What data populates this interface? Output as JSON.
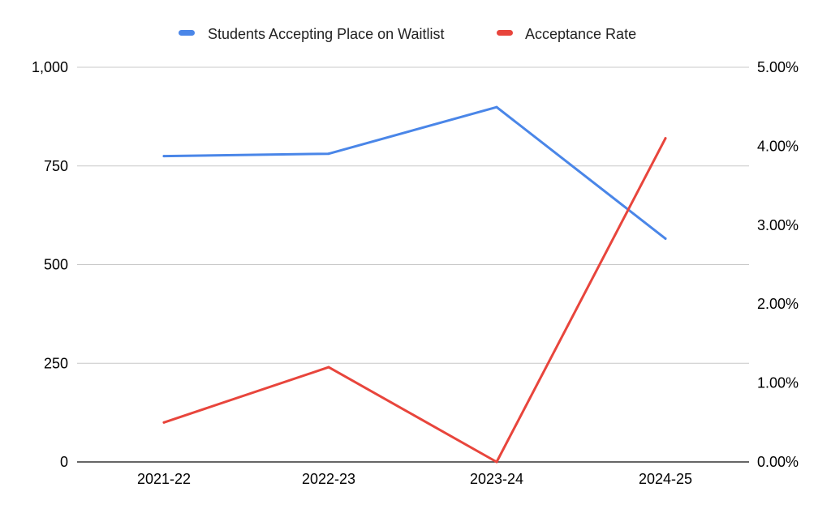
{
  "chart_data": {
    "type": "line",
    "title": "",
    "xlabel": "",
    "ylabel": "",
    "ylabel_right": "",
    "categories": [
      "2021-22",
      "2022-23",
      "2023-24",
      "2024-25"
    ],
    "series": [
      {
        "name": "Students Accepting Place on Waitlist",
        "axis": "left",
        "color": "#4a86e8",
        "values": [
          775,
          781,
          899,
          566
        ]
      },
      {
        "name": "Acceptance Rate",
        "axis": "right",
        "color": "#e8453c",
        "values": [
          0.5,
          1.2,
          0.0,
          4.1
        ]
      }
    ],
    "y_left": {
      "ylim": [
        0,
        1000
      ],
      "ticks": [
        0,
        250,
        500,
        750,
        1000
      ],
      "tick_labels": [
        "0",
        "250",
        "500",
        "750",
        "1,000"
      ]
    },
    "y_right": {
      "ylim": [
        0,
        5
      ],
      "ticks": [
        0,
        1,
        2,
        3,
        4,
        5
      ],
      "tick_labels": [
        "0.00%",
        "1.00%",
        "2.00%",
        "3.00%",
        "4.00%",
        "5.00%"
      ]
    },
    "grid": true,
    "legend_position": "top-center"
  }
}
